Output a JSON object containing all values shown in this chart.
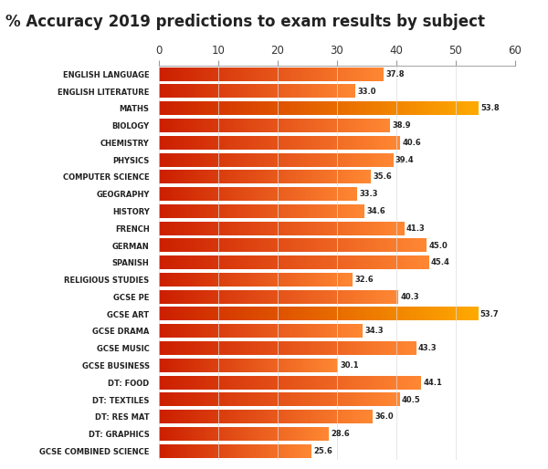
{
  "title": "% Accuracy 2019 predictions to exam results by subject",
  "categories": [
    "ENGLISH LANGUAGE",
    "ENGLISH LITERATURE",
    "MATHS",
    "BIOLOGY",
    "CHEMISTRY",
    "PHYSICS",
    "COMPUTER SCIENCE",
    "GEOGRAPHY",
    "HISTORY",
    "FRENCH",
    "GERMAN",
    "SPANISH",
    "RELIGIOUS STUDIES",
    "GCSE PE",
    "GCSE ART",
    "GCSE DRAMA",
    "GCSE MUSIC",
    "GCSE BUSINESS",
    "DT: FOOD",
    "DT: TEXTILES",
    "DT: RES MAT",
    "DT: GRAPHICS",
    "GCSE COMBINED SCIENCE"
  ],
  "values": [
    37.8,
    33.0,
    53.8,
    38.9,
    40.6,
    39.4,
    35.6,
    33.3,
    34.6,
    41.3,
    45.0,
    45.4,
    32.6,
    40.3,
    53.7,
    34.3,
    43.3,
    30.1,
    44.1,
    40.5,
    36.0,
    28.6,
    25.6
  ],
  "highlight_indices": [
    2,
    14
  ],
  "xlim": [
    0,
    60
  ],
  "xticks": [
    0,
    10,
    20,
    30,
    40,
    50,
    60
  ],
  "background_color": "#ffffff",
  "bar_color_start": "#cc1f00",
  "bar_color_end_normal": "#ff8833",
  "bar_color_end_highlight": "#ffaa00",
  "label_fontsize": 6.0,
  "value_fontsize": 6.0,
  "title_fontsize": 12,
  "bar_height": 0.78
}
